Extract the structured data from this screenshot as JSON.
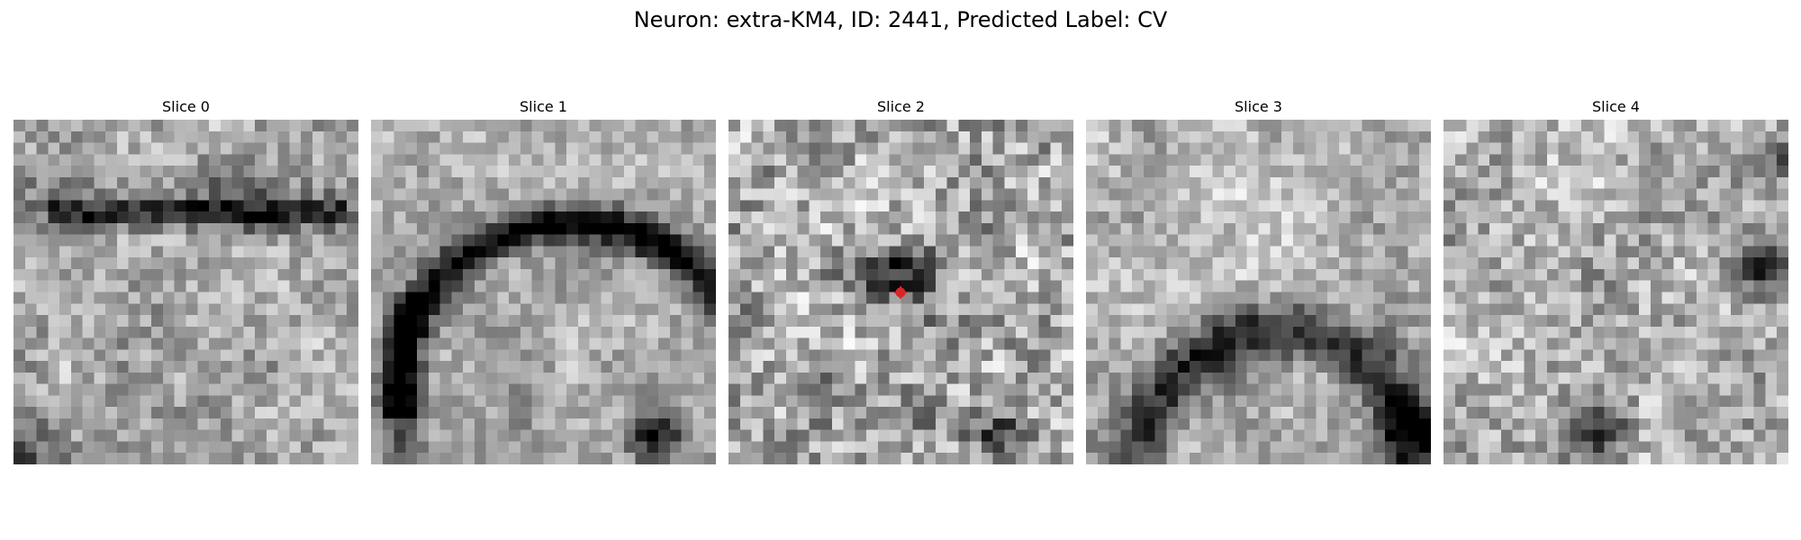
{
  "figure": {
    "title": "Neuron: extra-KM4, ID: 2441, Predicted Label: CV",
    "colormap": "gray"
  },
  "slices": [
    {
      "title": "Slice 0"
    },
    {
      "title": "Slice 1"
    },
    {
      "title": "Slice 2",
      "has_marker": true,
      "marker_color": "#d62728"
    },
    {
      "title": "Slice 3"
    },
    {
      "title": "Slice 4"
    }
  ]
}
